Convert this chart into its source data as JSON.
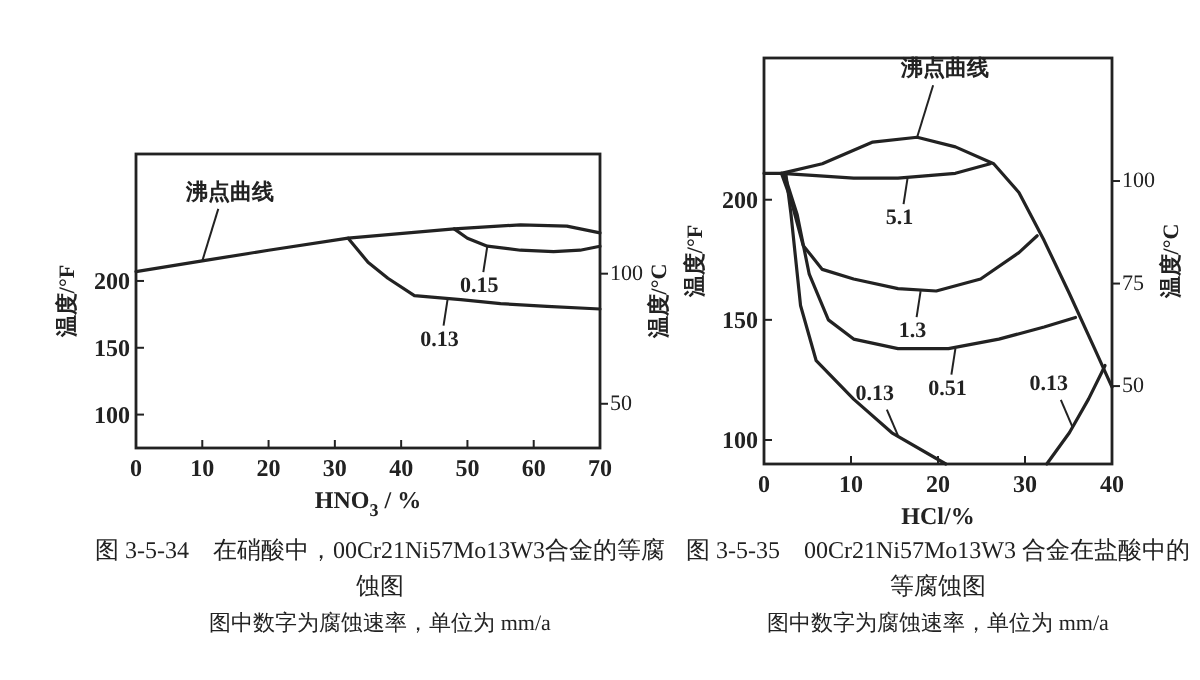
{
  "chart_data": [
    {
      "type": "line",
      "title": "图 3-5-34　在硝酸中，00Cr21Ni57Mo13W3合金的等腐蚀图",
      "subtitle": "图中数字为腐蚀速率，单位为 mm/a",
      "xlabel": "HNO$_{3}$ / %",
      "ylabel": "温度/°F",
      "y2label": "温度/°C",
      "xlim": [
        0,
        70
      ],
      "xticks": [
        0,
        10,
        20,
        30,
        40,
        50,
        60,
        70
      ],
      "ylim": [
        75,
        295
      ],
      "yticks": [
        100,
        150,
        200
      ],
      "y2lim": [
        33,
        146
      ],
      "y2ticks": [
        50,
        100
      ],
      "grid": false,
      "marker": "none",
      "line_style": "solid",
      "series": [
        {
          "color": "#222222",
          "x": [
            0,
            10,
            20,
            32,
            48,
            58,
            65,
            70
          ],
          "values": [
            207,
            215,
            223,
            232,
            239,
            242,
            241,
            236
          ]
        },
        {
          "color": "#222222",
          "x": [
            48,
            50,
            53,
            58,
            63,
            67,
            70
          ],
          "values": [
            239,
            232,
            226,
            223,
            222,
            223,
            226
          ]
        },
        {
          "color": "#222222",
          "x": [
            32,
            35,
            38,
            42,
            49,
            55,
            62,
            70
          ],
          "values": [
            232,
            214,
            202,
            189,
            186,
            183,
            181,
            179
          ]
        }
      ],
      "annotations": [
        {
          "text": "沸点曲线",
          "x": 10,
          "y": 215
        },
        {
          "text": "0.15",
          "x": 53,
          "y": 226
        },
        {
          "text": "0.13",
          "x": 47,
          "y": 186
        }
      ]
    },
    {
      "type": "line",
      "title": "图 3-5-35　00Cr21Ni57Mo13W3 合金在盐酸中的等腐蚀图",
      "subtitle": "图中数字为腐蚀速率，单位为 mm/a",
      "xlabel": "HCl/%",
      "ylabel": "温度/°F",
      "y2label": "温度/°C",
      "xlim": [
        0,
        40
      ],
      "xticks": [
        0,
        10,
        20,
        30,
        40
      ],
      "ylim": [
        90,
        259
      ],
      "yticks": [
        100,
        150,
        200
      ],
      "y2lim": [
        31,
        130
      ],
      "y2ticks": [
        50,
        75,
        100
      ],
      "grid": false,
      "marker": "none",
      "line_style": "solid",
      "series": [
        {
          "color": "#222222",
          "x": [
            0,
            2,
            6.7,
            12.5,
            17.6,
            22,
            26.4,
            29.3,
            32.2,
            35.1,
            38,
            40
          ],
          "values": [
            211,
            211,
            215,
            224,
            226,
            222,
            215,
            203,
            183,
            161,
            138,
            122
          ]
        },
        {
          "color": "#222222",
          "x": [
            2,
            6,
            10.3,
            15.4,
            22,
            26
          ],
          "values": [
            211,
            210,
            209,
            209,
            211,
            215
          ]
        },
        {
          "color": "#222222",
          "x": [
            2,
            3.1,
            4.5,
            6.7,
            10.3,
            15.4,
            19.8,
            24.9,
            29.3,
            31.4
          ],
          "values": [
            211,
            200,
            181,
            171,
            167,
            163,
            162,
            167,
            178,
            185
          ]
        },
        {
          "color": "#222222",
          "x": [
            2.3,
            3.8,
            5.2,
            7.4,
            10.3,
            15.4,
            21.2,
            27,
            32.2,
            35.8
          ],
          "values": [
            211,
            194,
            169,
            150,
            142,
            138,
            138,
            142,
            147,
            151
          ]
        },
        {
          "color": "#222222",
          "x": [
            2.5,
            3.1,
            4.2,
            6,
            10.3,
            14.7,
            20.9
          ],
          "values": [
            211,
            194,
            156,
            133,
            117,
            103,
            90
          ]
        },
        {
          "color": "#222222",
          "x": [
            32.5,
            35.1,
            37.3,
            38.8,
            39.2
          ],
          "values": [
            90,
            103,
            117,
            128,
            131
          ]
        }
      ],
      "annotations": [
        {
          "text": "沸点曲线",
          "x": 17.6,
          "y": 226
        },
        {
          "text": "5.1",
          "x": 16.5,
          "y": 209
        },
        {
          "text": "1.3",
          "x": 18,
          "y": 162
        },
        {
          "text": "0.51",
          "x": 22,
          "y": 138
        },
        {
          "text": "0.13",
          "x": 15.5,
          "y": 101
        },
        {
          "text": "0.13",
          "x": 35.5,
          "y": 105
        }
      ]
    }
  ]
}
